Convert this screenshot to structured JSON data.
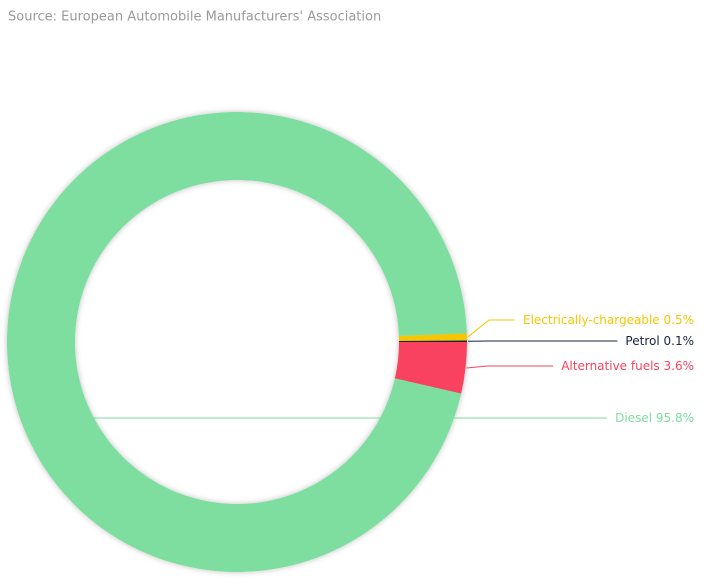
{
  "chart_data": {
    "type": "donut",
    "source": "Source: European Automobile Manufacturers' Association",
    "categories": [
      "Electrically-chargeable",
      "Petrol",
      "Alternative fuels",
      "Diesel"
    ],
    "values": [
      0.5,
      0.1,
      3.6,
      95.8
    ],
    "value_labels": [
      "0.5%",
      "0.1%",
      "3.6%",
      "95.8%"
    ],
    "colors": [
      "#f7c600",
      "#17253f",
      "#f8435f",
      "#7ddea0"
    ]
  }
}
